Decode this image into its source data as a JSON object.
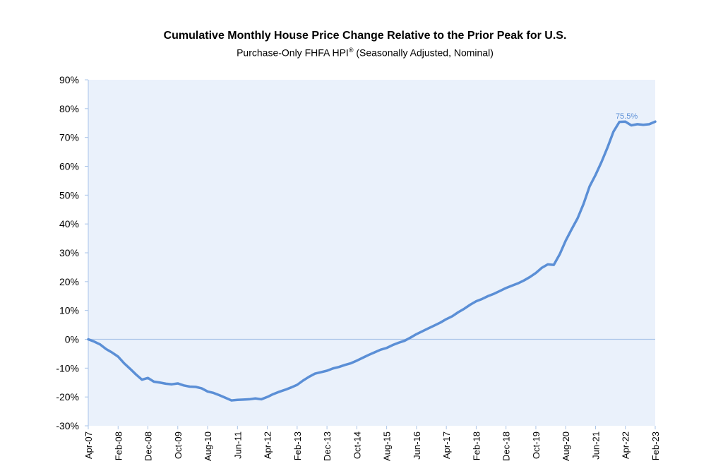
{
  "chart_data": {
    "type": "line",
    "title": "Cumulative Monthly House Price Change Relative to the Prior Peak for U.S.",
    "subtitle_text": "Purchase-Only FHFA HPI",
    "subtitle_sup": "®",
    "subtitle_suffix": " (Seasonally Adjusted, Nominal)",
    "xlabel": "",
    "ylabel": "",
    "ylim": [
      -30,
      90
    ],
    "y_ticks": [
      "90%",
      "80%",
      "70%",
      "60%",
      "50%",
      "40%",
      "30%",
      "20%",
      "10%",
      "0%",
      "-10%",
      "-20%",
      "-30%"
    ],
    "x_ticks": [
      "Apr-07",
      "Feb-08",
      "Dec-08",
      "Oct-09",
      "Aug-10",
      "Jun-11",
      "Apr-12",
      "Feb-13",
      "Dec-13",
      "Oct-14",
      "Aug-15",
      "Jun-16",
      "Apr-17",
      "Feb-18",
      "Dec-18",
      "Oct-19",
      "Aug-20",
      "Jun-21",
      "Apr-22",
      "Feb-23"
    ],
    "grid": false,
    "zero_line": true,
    "colors": {
      "line": "#5b8fd6",
      "plot_bg": "#eaf1fb",
      "zero_line": "#a9c4e8",
      "annotation": "#5b8fd6"
    },
    "series": [
      {
        "x": [
          "Apr-07",
          "Jun-07",
          "Aug-07",
          "Oct-07",
          "Dec-07",
          "Feb-08",
          "Apr-08",
          "Jun-08",
          "Aug-08",
          "Oct-08",
          "Dec-08",
          "Feb-09",
          "Apr-09",
          "Jun-09",
          "Aug-09",
          "Oct-09",
          "Dec-09",
          "Feb-10",
          "Apr-10",
          "Jun-10",
          "Aug-10",
          "Oct-10",
          "Dec-10",
          "Feb-11",
          "Apr-11",
          "Jun-11",
          "Aug-11",
          "Oct-11",
          "Dec-11",
          "Feb-12",
          "Apr-12",
          "Jun-12",
          "Aug-12",
          "Oct-12",
          "Dec-12",
          "Feb-13",
          "Apr-13",
          "Jun-13",
          "Aug-13",
          "Oct-13",
          "Dec-13",
          "Feb-14",
          "Apr-14",
          "Jun-14",
          "Aug-14",
          "Oct-14",
          "Dec-14",
          "Feb-15",
          "Apr-15",
          "Jun-15",
          "Aug-15",
          "Oct-15",
          "Dec-15",
          "Feb-16",
          "Apr-16",
          "Jun-16",
          "Aug-16",
          "Oct-16",
          "Dec-16",
          "Feb-17",
          "Apr-17",
          "Jun-17",
          "Aug-17",
          "Oct-17",
          "Dec-17",
          "Feb-18",
          "Apr-18",
          "Jun-18",
          "Aug-18",
          "Oct-18",
          "Dec-18",
          "Feb-19",
          "Apr-19",
          "Jun-19",
          "Aug-19",
          "Oct-19",
          "Dec-19",
          "Feb-20",
          "Apr-20",
          "Jun-20",
          "Aug-20",
          "Oct-20",
          "Dec-20",
          "Feb-21",
          "Apr-21",
          "Jun-21",
          "Aug-21",
          "Oct-21",
          "Dec-21",
          "Feb-22",
          "Apr-22",
          "Jun-22",
          "Aug-22",
          "Oct-22",
          "Dec-22",
          "Feb-23"
        ],
        "values": [
          0.0,
          -0.8,
          -1.8,
          -3.4,
          -4.6,
          -6.0,
          -8.3,
          -10.2,
          -12.2,
          -14.0,
          -13.4,
          -14.7,
          -15.0,
          -15.4,
          -15.6,
          -15.3,
          -16.0,
          -16.4,
          -16.5,
          -17.0,
          -18.1,
          -18.6,
          -19.4,
          -20.3,
          -21.2,
          -21.0,
          -20.9,
          -20.8,
          -20.5,
          -20.8,
          -20.0,
          -19.0,
          -18.2,
          -17.5,
          -16.7,
          -15.8,
          -14.3,
          -13.0,
          -11.9,
          -11.4,
          -10.9,
          -10.1,
          -9.6,
          -8.9,
          -8.3,
          -7.4,
          -6.4,
          -5.4,
          -4.5,
          -3.6,
          -3.0,
          -2.0,
          -1.2,
          -0.5,
          0.6,
          1.8,
          2.8,
          3.8,
          4.8,
          5.8,
          7.0,
          8.0,
          9.4,
          10.6,
          12.0,
          13.2,
          14.0,
          15.0,
          15.8,
          16.8,
          17.8,
          18.6,
          19.4,
          20.4,
          21.6,
          23.0,
          24.8,
          26.0,
          25.8,
          29.5,
          34.2,
          38.2,
          42.0,
          47.0,
          53.0,
          57.0,
          61.5,
          66.5,
          72.0,
          75.4,
          75.5,
          74.2,
          74.6,
          74.4,
          74.6,
          75.5
        ]
      }
    ],
    "annotations": [
      {
        "text": "75.5%",
        "x": "Dec-22",
        "y": 77.5
      }
    ]
  }
}
